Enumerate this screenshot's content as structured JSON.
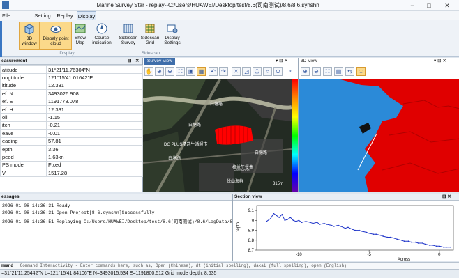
{
  "window": {
    "title": "Marine Survey Star - replay--C:/Users/HUAWEI/Desktop/test/8.6(司南测试)/8.6/8.6.synshn",
    "min": "−",
    "max": "□",
    "close": "✕"
  },
  "menu": [
    "File",
    "Setting",
    "Replay",
    "Display"
  ],
  "ribbon": {
    "buttons": [
      {
        "label": "3D\nwindow",
        "icon": "cube-icon"
      },
      {
        "label": "Dispaly point\ncloud",
        "icon": "point-cloud-icon"
      },
      {
        "label": "Show\nMap",
        "icon": "map-icon"
      },
      {
        "label": "Course\nindication",
        "icon": "compass-icon"
      },
      {
        "label": "Sidescan\nSurvey",
        "icon": "sidescan-icon"
      },
      {
        "label": "Sidescan\nGrid",
        "icon": "grid-icon"
      },
      {
        "label": "Display\nSettings",
        "icon": "settings-icon"
      }
    ],
    "groups": [
      "Display",
      "Sidescan"
    ]
  },
  "measurement": {
    "title": "easurement",
    "pin": "⊟",
    "close": "✕",
    "rows": [
      [
        "atitude",
        "31°21'11.76304\"N"
      ],
      [
        "ongtitude",
        "121°15'41.01642\"E"
      ],
      [
        "ltitude",
        "12.331"
      ],
      [
        "ef. N",
        "3493026.908"
      ],
      [
        "ef. E",
        "1191778.078"
      ],
      [
        "ef. H",
        "12.331"
      ],
      [
        "oll",
        "-1.15"
      ],
      [
        "itch",
        "-0.21"
      ],
      [
        "eave",
        "-0.01"
      ],
      [
        "eading",
        "57.81"
      ],
      [
        "epth",
        "3.36"
      ],
      [
        "peed",
        "1.63kn"
      ],
      [
        "PS mode",
        "Fixed"
      ],
      [
        "V",
        "1517.28"
      ]
    ]
  },
  "survey": {
    "tab": "Survey View",
    "pin": "▾ ⊟ ✕",
    "map_labels": [
      "DG PLUS精选生活超市",
      "格兰午餐盒",
      "Fast Food",
      "悦山海鲜",
      "白塘路",
      "白塘路",
      "白塘路",
      "白塘路",
      "315m"
    ]
  },
  "view3d": {
    "tab": "3D View",
    "pin": "▾ ⊟ ✕"
  },
  "messages": {
    "title": "essages",
    "lines": [
      "2026-01-08 14:36:31  Ready",
      "2026-01-08 14:36:31  Open Project[8.6.synshn]Successfully!",
      "2026-01-08 14:36:51  Replaying C:/Users/HUAWEI/Desktop/test/8.6(司南测试)/8.6/LogData/8.6-202508"
    ]
  },
  "section": {
    "title": "Section view",
    "pin": "⊟ ✕"
  },
  "colors": {
    "accent": "#3f6eaa",
    "selected": "#fbd98a",
    "track": "#ff0000",
    "chartline": "#1f35c9"
  },
  "chart_data": {
    "type": "line",
    "title": "",
    "xlabel": "Across",
    "ylabel": "Depth",
    "xlim": [
      -13,
      1
    ],
    "ylim": [
      8.7,
      9.15
    ],
    "xticks": [
      -10,
      -5,
      0
    ],
    "yticks": [
      8.7,
      8.8,
      8.9,
      9,
      9.1
    ],
    "series": [
      {
        "x": [
          -12.3,
          -12.0,
          -11.8,
          -11.6,
          -11.4,
          -11.2,
          -11.0,
          -10.8,
          -10.6,
          -10.4,
          -10.2,
          -10.0,
          -9.8,
          -9.5,
          -9.2,
          -9.0,
          -8.7,
          -8.5,
          -8.2,
          -8.0,
          -7.7,
          -7.5,
          -7.2,
          -7.0,
          -6.7,
          -6.5,
          -6.2,
          -6.0,
          -5.7,
          -5.5,
          -5.2,
          -5.0,
          -4.7,
          -4.5,
          -4.2,
          -4.0,
          -3.7,
          -3.5,
          -3.2,
          -3.0,
          -2.7,
          -2.5,
          -2.2,
          -2.0,
          -1.7,
          -1.5,
          -1.2,
          -1.0,
          -0.7,
          -0.5,
          -0.2,
          0.0,
          0.3,
          0.5,
          0.8
        ],
        "values": [
          8.99,
          9.02,
          9.07,
          9.05,
          9.03,
          9.06,
          9.0,
          9.01,
          9.03,
          9.0,
          8.99,
          9.0,
          8.98,
          8.99,
          8.98,
          8.97,
          8.98,
          8.96,
          8.97,
          8.96,
          8.95,
          8.94,
          8.95,
          8.94,
          8.92,
          8.93,
          8.91,
          8.9,
          8.9,
          8.89,
          8.88,
          8.87,
          8.86,
          8.86,
          8.85,
          8.84,
          8.83,
          8.83,
          8.82,
          8.81,
          8.8,
          8.79,
          8.79,
          8.78,
          8.78,
          8.77,
          8.77,
          8.76,
          8.75,
          8.75,
          8.74,
          8.74,
          8.73,
          8.73,
          8.73
        ]
      }
    ]
  },
  "command": {
    "label": "mmand",
    "text": "Command Interactivity - Enter commands here, such as, Open (Chinese), dt (initial spelling), dakai (full spelling), open (English)"
  },
  "status": {
    "text": "=31°21'11.25442\"N  L=121°15'41.84106\"E    N=3493015.534  E=1191800.512    Grid mode depth: 8.635"
  }
}
